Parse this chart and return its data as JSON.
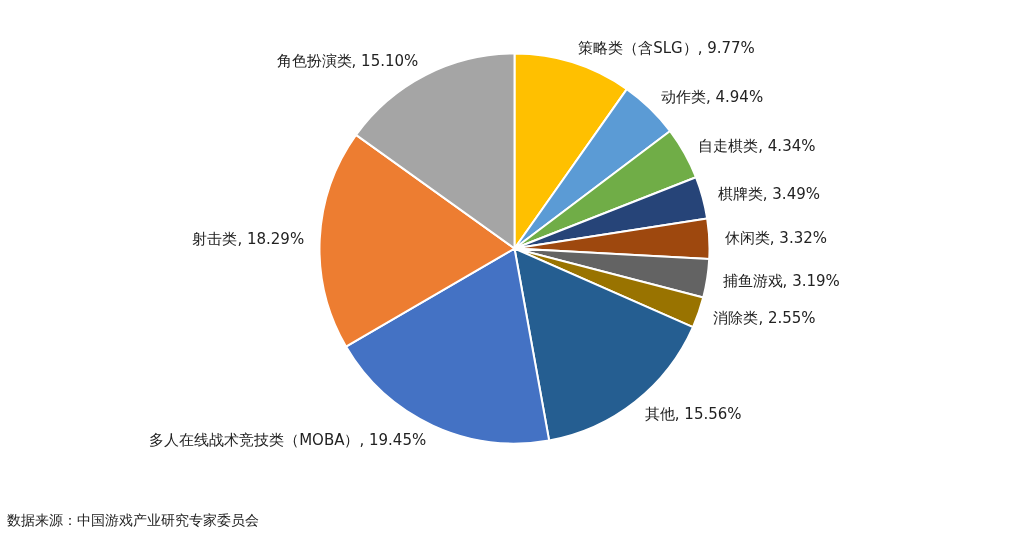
{
  "chart_data": {
    "type": "pie",
    "categories": [
      "策略类（含SLG）",
      "动作类",
      "自走棋类",
      "棋牌类",
      "休闲类",
      "捕鱼游戏",
      "消除类",
      "其他",
      "多人在线战术竞技类（MOBA）",
      "射击类",
      "角色扮演类"
    ],
    "values": [
      9.77,
      4.94,
      4.34,
      3.49,
      3.32,
      3.19,
      2.55,
      15.56,
      19.45,
      18.29,
      15.1
    ],
    "value_labels": [
      "9.77%",
      "4.94%",
      "4.34%",
      "3.49%",
      "3.32%",
      "3.19%",
      "2.55%",
      "15.56%",
      "19.45%",
      "18.29%",
      "15.10%"
    ],
    "colors": [
      "#ffc000",
      "#5b9bd5",
      "#70ad47",
      "#264478",
      "#9e480e",
      "#636363",
      "#997300",
      "#255e91",
      "#4472c4",
      "#ed7d31",
      "#a5a5a5"
    ],
    "annotations": [
      "数据来源：中国游戏产业研究专家委员会"
    ]
  }
}
